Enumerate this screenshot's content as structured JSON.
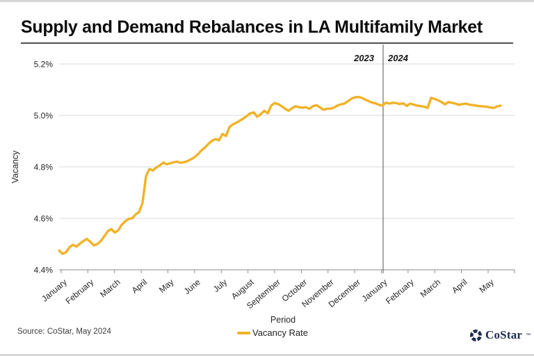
{
  "footer": {
    "source": "Source: CoStar, May 2024",
    "logo_text": "CoStar",
    "logo_tm": "™"
  },
  "colors": {
    "line": "#F1B227",
    "logo_navy": "#1D2B52",
    "gridline": "#D9D9D9",
    "axis": "#8A8A8A",
    "divider": "#6E6E6E"
  },
  "chart_data": {
    "type": "line",
    "title": "Supply and Demand Rebalances in LA Multifamily Market",
    "xlabel": "Period",
    "ylabel": "Vacancy",
    "unit": "%",
    "grid": "horizontal",
    "legend_position": "bottom-center",
    "legend": [
      {
        "label": "Vacancy Rate",
        "color": "#F1B227"
      }
    ],
    "year_labels": [
      "2023",
      "2024"
    ],
    "year_divider_after_label_index": 11,
    "ylim": [
      4.4,
      5.2
    ],
    "yticks": [
      "5.2%",
      "5.0%",
      "4.8%",
      "4.6%",
      "4.4%"
    ],
    "x_labels": [
      "January",
      "February",
      "March",
      "April",
      "May",
      "June",
      "July",
      "August",
      "September",
      "October",
      "November",
      "December",
      "January",
      "February",
      "March",
      "April",
      "May"
    ],
    "series": [
      {
        "name": "Vacancy Rate",
        "color": "#F1B227",
        "values": [
          4.475,
          4.462,
          4.468,
          4.488,
          4.497,
          4.49,
          4.502,
          4.512,
          4.52,
          4.508,
          4.495,
          4.5,
          4.512,
          4.53,
          4.55,
          4.558,
          4.545,
          4.553,
          4.575,
          4.588,
          4.598,
          4.6,
          4.615,
          4.625,
          4.66,
          4.765,
          4.792,
          4.786,
          4.798,
          4.806,
          4.817,
          4.81,
          4.814,
          4.818,
          4.82,
          4.816,
          4.818,
          4.823,
          4.83,
          4.838,
          4.85,
          4.865,
          4.876,
          4.89,
          4.902,
          4.908,
          4.903,
          4.928,
          4.92,
          4.955,
          4.965,
          4.972,
          4.98,
          4.988,
          4.998,
          5.008,
          5.012,
          4.995,
          5.005,
          5.018,
          5.008,
          5.038,
          5.048,
          5.044,
          5.036,
          5.026,
          5.018,
          5.028,
          5.036,
          5.032,
          5.03,
          5.032,
          5.026,
          5.036,
          5.04,
          5.032,
          5.022,
          5.026,
          5.026,
          5.03,
          5.038,
          5.043,
          5.046,
          5.054,
          5.064,
          5.07,
          5.072,
          5.069,
          5.062,
          5.056,
          5.05,
          5.047,
          5.041,
          5.038,
          5.05,
          5.046,
          5.049,
          5.048,
          5.044,
          5.047,
          5.037,
          5.046,
          5.042,
          5.038,
          5.036,
          5.034,
          5.029,
          5.068,
          5.064,
          5.059,
          5.052,
          5.043,
          5.052,
          5.049,
          5.046,
          5.041,
          5.044,
          5.046,
          5.042,
          5.04,
          5.038,
          5.036,
          5.035,
          5.034,
          5.031,
          5.029,
          5.035,
          5.038
        ]
      }
    ]
  }
}
